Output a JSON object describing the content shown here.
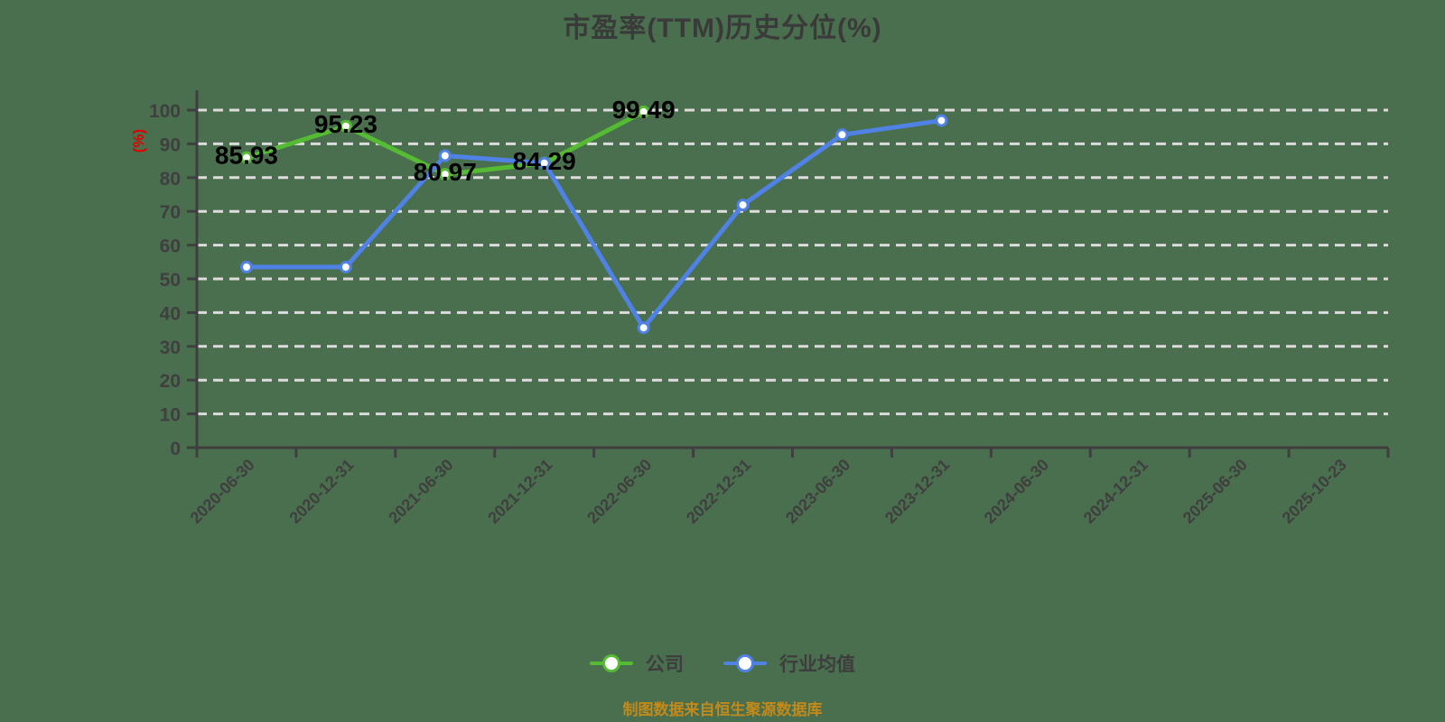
{
  "title": "市盈率(TTM)历史分位(%)",
  "y_axis_name": "(%)",
  "footer": "制图数据来自恒生聚源数据库",
  "colors": {
    "background": "#4a6f4e",
    "title_text": "#3a3a3a",
    "axis": "#3f3f3f",
    "gridline": "#dcdcdc",
    "company_green": "#55bb33",
    "industry_blue": "#4f82e4",
    "y_axis_name_red": "#dd0000",
    "footer_orange": "#c28a1b",
    "data_label": "#000000",
    "marker_fill": "#ffffff"
  },
  "chart_data": {
    "type": "line",
    "title": "市盈率(TTM)历史分位(%)",
    "xlabel": "",
    "ylabel": "(%)",
    "ylim": [
      0,
      100
    ],
    "ytick_interval": 10,
    "grid": "horizontal-dashed",
    "legend_position": "bottom",
    "categories": [
      "2020-06-30",
      "2020-12-31",
      "2021-06-30",
      "2021-12-31",
      "2022-06-30",
      "2022-12-31",
      "2023-06-30",
      "2023-12-31",
      "2024-06-30",
      "2024-12-31",
      "2025-06-30",
      "2025-10-23"
    ],
    "series": [
      {
        "name": "公司",
        "color": "#55bb33",
        "marker": "hollow-circle",
        "show_labels": true,
        "values": [
          85.93,
          95.23,
          80.97,
          84.29,
          99.49
        ],
        "labels": [
          "85.93",
          "95.23",
          "80.97",
          "84.29",
          "99.49"
        ]
      },
      {
        "name": "行业均值",
        "color": "#4f82e4",
        "marker": "hollow-circle",
        "show_labels": false,
        "values": [
          53.5,
          53.5,
          86.5,
          84.3,
          35.5,
          71.9,
          92.7,
          96.9
        ],
        "labels": []
      }
    ]
  }
}
